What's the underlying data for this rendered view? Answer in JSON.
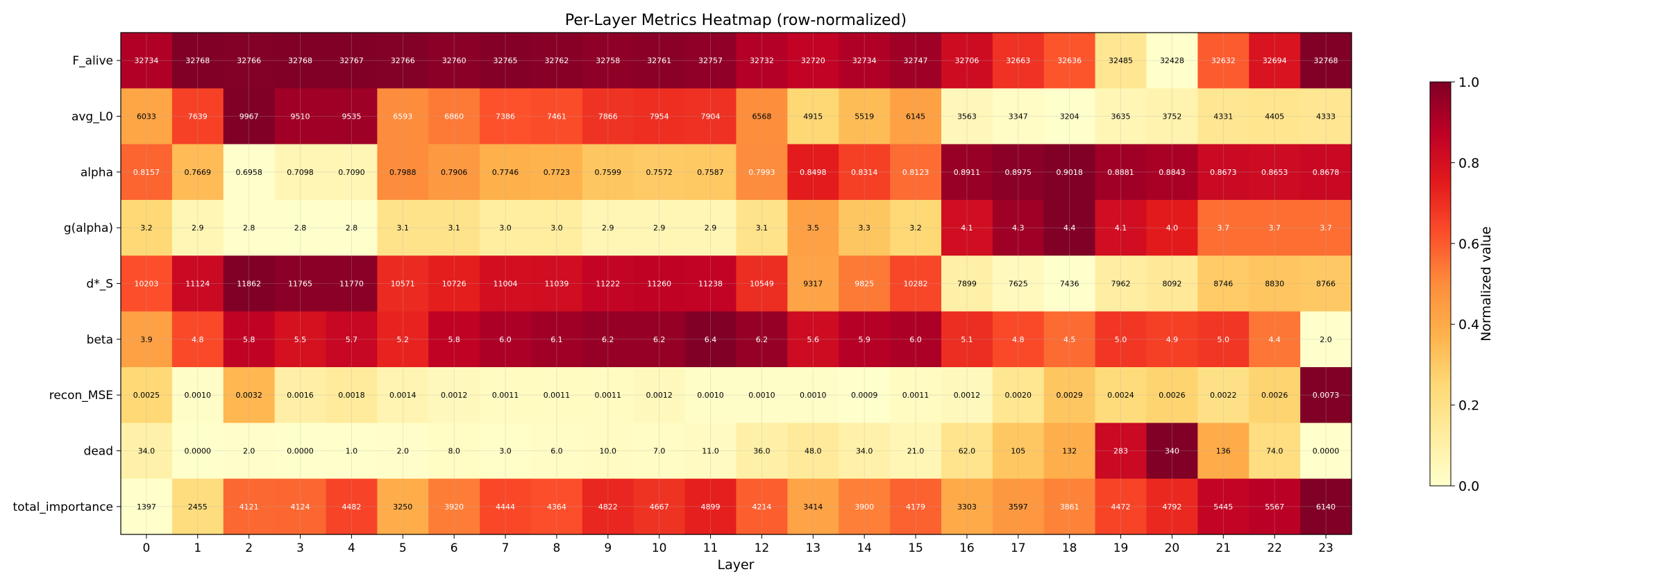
{
  "chart_data": {
    "type": "heatmap",
    "title": "Per-Layer Metrics Heatmap (row-normalized)",
    "xlabel": "Layer",
    "colorbar_label": "Normalized value",
    "colorbar_ticks": [
      "0.0",
      "0.2",
      "0.4",
      "0.6",
      "0.8",
      "1.0"
    ],
    "colormap": "YlOrRd",
    "grid": true,
    "x": [
      "0",
      "1",
      "2",
      "3",
      "4",
      "5",
      "6",
      "7",
      "8",
      "9",
      "10",
      "11",
      "12",
      "13",
      "14",
      "15",
      "16",
      "17",
      "18",
      "19",
      "20",
      "21",
      "22",
      "23"
    ],
    "rows": [
      {
        "name": "F_alive",
        "values": [
          "32734",
          "32768",
          "32766",
          "32768",
          "32767",
          "32766",
          "32760",
          "32765",
          "32762",
          "32758",
          "32761",
          "32757",
          "32732",
          "32720",
          "32734",
          "32747",
          "32706",
          "32663",
          "32636",
          "32485",
          "32428",
          "32632",
          "32694",
          "32768"
        ]
      },
      {
        "name": "avg_L0",
        "values": [
          "6033",
          "7639",
          "9967",
          "9510",
          "9535",
          "6593",
          "6860",
          "7386",
          "7461",
          "7866",
          "7954",
          "7904",
          "6568",
          "4915",
          "5519",
          "6145",
          "3563",
          "3347",
          "3204",
          "3635",
          "3752",
          "4331",
          "4405",
          "4333"
        ]
      },
      {
        "name": "alpha",
        "values": [
          "0.8157",
          "0.7669",
          "0.6958",
          "0.7098",
          "0.7090",
          "0.7988",
          "0.7906",
          "0.7746",
          "0.7723",
          "0.7599",
          "0.7572",
          "0.7587",
          "0.7993",
          "0.8498",
          "0.8314",
          "0.8123",
          "0.8911",
          "0.8975",
          "0.9018",
          "0.8881",
          "0.8843",
          "0.8673",
          "0.8653",
          "0.8678"
        ]
      },
      {
        "name": "g(alpha)",
        "values": [
          "3.2",
          "2.9",
          "2.8",
          "2.8",
          "2.8",
          "3.1",
          "3.1",
          "3.0",
          "3.0",
          "2.9",
          "2.9",
          "2.9",
          "3.1",
          "3.5",
          "3.3",
          "3.2",
          "4.1",
          "4.3",
          "4.4",
          "4.1",
          "4.0",
          "3.7",
          "3.7",
          "3.7"
        ]
      },
      {
        "name": "d*_S",
        "values": [
          "10203",
          "11124",
          "11862",
          "11765",
          "11770",
          "10571",
          "10726",
          "11004",
          "11039",
          "11222",
          "11260",
          "11238",
          "10549",
          "9317",
          "9825",
          "10282",
          "7899",
          "7625",
          "7436",
          "7962",
          "8092",
          "8746",
          "8830",
          "8766"
        ]
      },
      {
        "name": "beta",
        "values": [
          "3.9",
          "4.8",
          "5.8",
          "5.5",
          "5.7",
          "5.2",
          "5.8",
          "6.0",
          "6.1",
          "6.2",
          "6.2",
          "6.4",
          "6.2",
          "5.6",
          "5.9",
          "6.0",
          "5.1",
          "4.8",
          "4.5",
          "5.0",
          "4.9",
          "5.0",
          "4.4",
          "2.0"
        ]
      },
      {
        "name": "recon_MSE",
        "values": [
          "0.0025",
          "0.0010",
          "0.0032",
          "0.0016",
          "0.0018",
          "0.0014",
          "0.0012",
          "0.0011",
          "0.0011",
          "0.0011",
          "0.0012",
          "0.0010",
          "0.0010",
          "0.0010",
          "0.0009",
          "0.0011",
          "0.0012",
          "0.0020",
          "0.0029",
          "0.0024",
          "0.0026",
          "0.0022",
          "0.0026",
          "0.0073"
        ]
      },
      {
        "name": "dead",
        "values": [
          "34.0",
          "0.0000",
          "2.0",
          "0.0000",
          "1.0",
          "2.0",
          "8.0",
          "3.0",
          "6.0",
          "10.0",
          "7.0",
          "11.0",
          "36.0",
          "48.0",
          "34.0",
          "21.0",
          "62.0",
          "105",
          "132",
          "283",
          "340",
          "136",
          "74.0",
          "0.0000"
        ]
      },
      {
        "name": "total_importance",
        "values": [
          "1397",
          "2455",
          "4121",
          "4124",
          "4482",
          "3250",
          "3920",
          "4444",
          "4364",
          "4822",
          "4667",
          "4899",
          "4214",
          "3414",
          "3900",
          "4179",
          "3303",
          "3597",
          "3861",
          "4472",
          "4792",
          "5445",
          "5567",
          "6140"
        ]
      }
    ]
  }
}
